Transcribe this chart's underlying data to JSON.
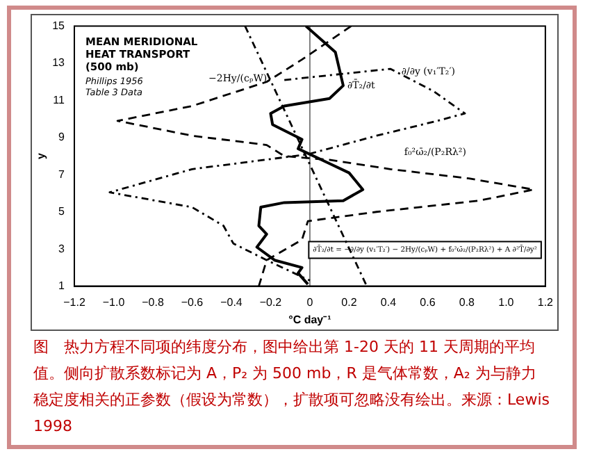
{
  "chart_data": {
    "type": "line",
    "title": "MEAN MERIDIONAL HEAT TRANSPORT (500 mb)",
    "subtitle": "Phillips 1956 Table 3 Data",
    "xlabel": "°C day⁻¹",
    "ylabel": "y",
    "xlim": [
      -1.2,
      1.2
    ],
    "xticks": [
      -1.2,
      {
        "value": -1,
        "label": "−1.0"
      },
      -0.8,
      -0.6,
      -0.4,
      -0.2,
      0,
      0.2,
      0.4,
      0.6,
      0.8,
      {
        "value": 1,
        "label": "1.0"
      },
      1.2
    ],
    "ylim": [
      1,
      15
    ],
    "yticks": [
      1,
      3,
      5,
      7,
      9,
      11,
      13,
      15
    ],
    "grid": false,
    "ref_lines": [
      {
        "axis": "x",
        "value": 0,
        "color": "#808080"
      }
    ],
    "series": [
      {
        "name": "∂T̄₂/∂t",
        "color": "#000000",
        "line_style": "solid",
        "x": [
          -0.02,
          0.13,
          0.17,
          0.1,
          -0.13,
          -0.2,
          -0.19,
          -0.04,
          -0.06,
          0.1,
          0.2,
          0.27,
          0.17,
          -0.13,
          -0.25,
          -0.26,
          -0.22,
          -0.27,
          -0.18,
          -0.04,
          -0.06,
          -0.01
        ],
        "values": [
          15,
          13.6,
          11.8,
          11.1,
          10.7,
          10.3,
          9.7,
          8.9,
          8.4,
          7.6,
          7.1,
          6.2,
          5.6,
          5.5,
          5.25,
          4.25,
          3.8,
          3.1,
          2.4,
          2.0,
          1.7,
          1.1
        ]
      },
      {
        "name": "f₀²ω̄₂/(P₂Rλ²)",
        "color": "#000000",
        "line_style": "dashed",
        "x": [
          0.21,
          -0.04,
          -0.22,
          -0.6,
          -0.98,
          -0.6,
          -0.22,
          -0.13,
          0.1,
          0.41,
          0.81,
          1.14,
          0.86,
          0.34,
          -0.01,
          -0.04,
          -0.22,
          -0.26
        ],
        "values": [
          15,
          13.2,
          12,
          10.7,
          9.9,
          9.1,
          8.6,
          8.0,
          7.8,
          7.3,
          6.8,
          6.2,
          5.6,
          5.0,
          4.5,
          3.5,
          2.4,
          1
        ]
      },
      {
        "name": "∂/∂y (v₁′T₂′)",
        "color": "#000000",
        "line_style": "dotted",
        "x": [
          -0.13,
          0.41,
          0.63,
          0.79,
          0.65,
          0.34,
          -0.01,
          -0.6,
          -1.02,
          -0.6,
          -0.44,
          -0.39,
          -0.22,
          0
        ],
        "values": [
          12.1,
          12.7,
          11.5,
          10.3,
          9.9,
          9.1,
          8.1,
          7.3,
          6.05,
          5.25,
          4.25,
          3.3,
          2.4,
          1.3
        ]
      },
      {
        "name": "−2Hy/(cₚW)",
        "color": "#000000",
        "line_style": "dotted",
        "x": [
          -0.33,
          0.29
        ],
        "values": [
          15,
          1
        ]
      }
    ],
    "annotations": [
      "∂T̄₂/∂t = −∂/∂y (v₁′T₂′) − 2Hy/(cₚW) + f₀²ω̄₂/(P₂Rλ²) + A ∂²T̄/∂y²",
      "图　热力方程不同项的纬度分布，图中给出第 1-20 天的 11 天周期的平均值。侧向扩散系数标记为 A，P₂ 为 500 mb，R 是气体常数，A₂ 为与静力稳定度相关的正参数（假设为常数），扩散项可忽略没有绘出。来源：Lewis 1998"
    ]
  }
}
